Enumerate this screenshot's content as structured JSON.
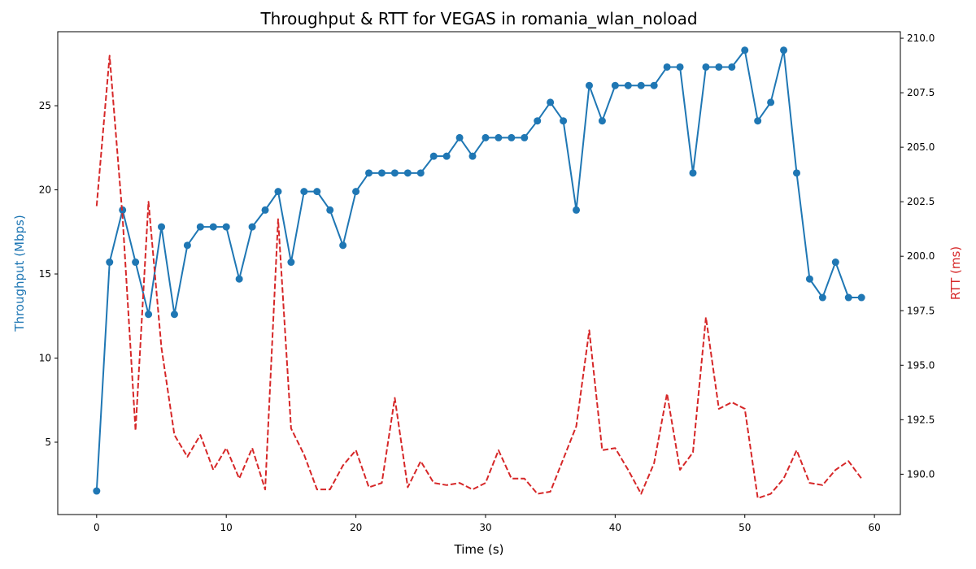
{
  "chart_data": {
    "type": "line",
    "title": "Throughput & RTT for VEGAS in romania_wlan_noload",
    "xlabel": "Time (s)",
    "ylabel_left": "Throughput (Mbps)",
    "ylabel_right": "RTT (ms)",
    "xlim": [
      -3,
      62
    ],
    "ylim_left": [
      0.7,
      29.4
    ],
    "ylim_right": [
      188.15,
      210.3
    ],
    "x_ticks": [
      0,
      10,
      20,
      30,
      40,
      50,
      60
    ],
    "y_ticks_left": [
      5,
      10,
      15,
      20,
      25
    ],
    "y_ticks_right": [
      190.0,
      192.5,
      195.0,
      197.5,
      200.0,
      202.5,
      205.0,
      207.5,
      210.0
    ],
    "x_tick_labels": [
      "0",
      "10",
      "20",
      "30",
      "40",
      "50",
      "60"
    ],
    "y_tick_labels_left": [
      "5",
      "10",
      "15",
      "20",
      "25"
    ],
    "y_tick_labels_right": [
      "190.0",
      "192.5",
      "195.0",
      "197.5",
      "200.0",
      "202.5",
      "205.0",
      "207.5",
      "210.0"
    ],
    "grid": false,
    "legend": "none",
    "series": [
      {
        "axis": "left",
        "color": "#1f77b4",
        "style": "solid",
        "marker": "circle",
        "x": [
          0,
          1,
          2,
          3,
          4,
          5,
          6,
          7,
          8,
          9,
          10,
          11,
          12,
          13,
          14,
          15,
          16,
          17,
          18,
          19,
          20,
          21,
          22,
          23,
          24,
          25,
          26,
          27,
          28,
          29,
          30,
          31,
          32,
          33,
          34,
          35,
          36,
          37,
          38,
          39,
          40,
          41,
          42,
          43,
          44,
          45,
          46,
          47,
          48,
          49,
          50,
          51,
          52,
          53,
          54,
          55,
          56,
          57,
          58,
          59
        ],
        "values": [
          2.1,
          15.7,
          18.8,
          15.7,
          12.6,
          17.8,
          12.6,
          16.7,
          17.8,
          17.8,
          17.8,
          14.7,
          17.8,
          18.8,
          19.9,
          15.7,
          19.9,
          19.9,
          18.8,
          16.7,
          19.9,
          21.0,
          21.0,
          21.0,
          21.0,
          21.0,
          22.0,
          22.0,
          23.1,
          22.0,
          23.1,
          23.1,
          23.1,
          23.1,
          24.1,
          25.2,
          24.1,
          18.8,
          26.2,
          24.1,
          26.2,
          26.2,
          26.2,
          26.2,
          27.3,
          27.3,
          21.0,
          27.3,
          27.3,
          27.3,
          28.3,
          24.1,
          25.2,
          28.3,
          21.0,
          14.7,
          13.6,
          15.7,
          13.6,
          13.6
        ]
      },
      {
        "axis": "right",
        "color": "#d62728",
        "style": "dashed",
        "marker": "none",
        "x": [
          0,
          1,
          2,
          3,
          4,
          5,
          6,
          7,
          8,
          9,
          10,
          11,
          12,
          13,
          14,
          15,
          16,
          17,
          18,
          19,
          20,
          21,
          22,
          23,
          24,
          25,
          26,
          27,
          28,
          29,
          30,
          31,
          32,
          33,
          34,
          35,
          36,
          37,
          38,
          39,
          40,
          41,
          42,
          43,
          44,
          45,
          46,
          47,
          48,
          49,
          50,
          51,
          52,
          53,
          54,
          55,
          56,
          57,
          58,
          59
        ],
        "values": [
          202.3,
          209.2,
          201.8,
          192.0,
          202.5,
          195.8,
          191.8,
          190.8,
          191.8,
          190.2,
          191.2,
          189.8,
          191.2,
          189.3,
          201.7,
          192.1,
          190.9,
          189.3,
          189.3,
          190.4,
          191.1,
          189.4,
          189.6,
          193.5,
          189.4,
          190.6,
          189.6,
          189.5,
          189.6,
          189.3,
          189.6,
          191.1,
          189.8,
          189.8,
          189.1,
          189.2,
          190.7,
          192.2,
          196.6,
          191.1,
          191.2,
          190.2,
          189.1,
          190.5,
          193.7,
          190.2,
          191.0,
          197.2,
          193.0,
          193.3,
          193.0,
          188.9,
          189.1,
          189.8,
          191.1,
          189.6,
          189.5,
          190.2,
          190.6,
          189.8
        ]
      }
    ]
  }
}
